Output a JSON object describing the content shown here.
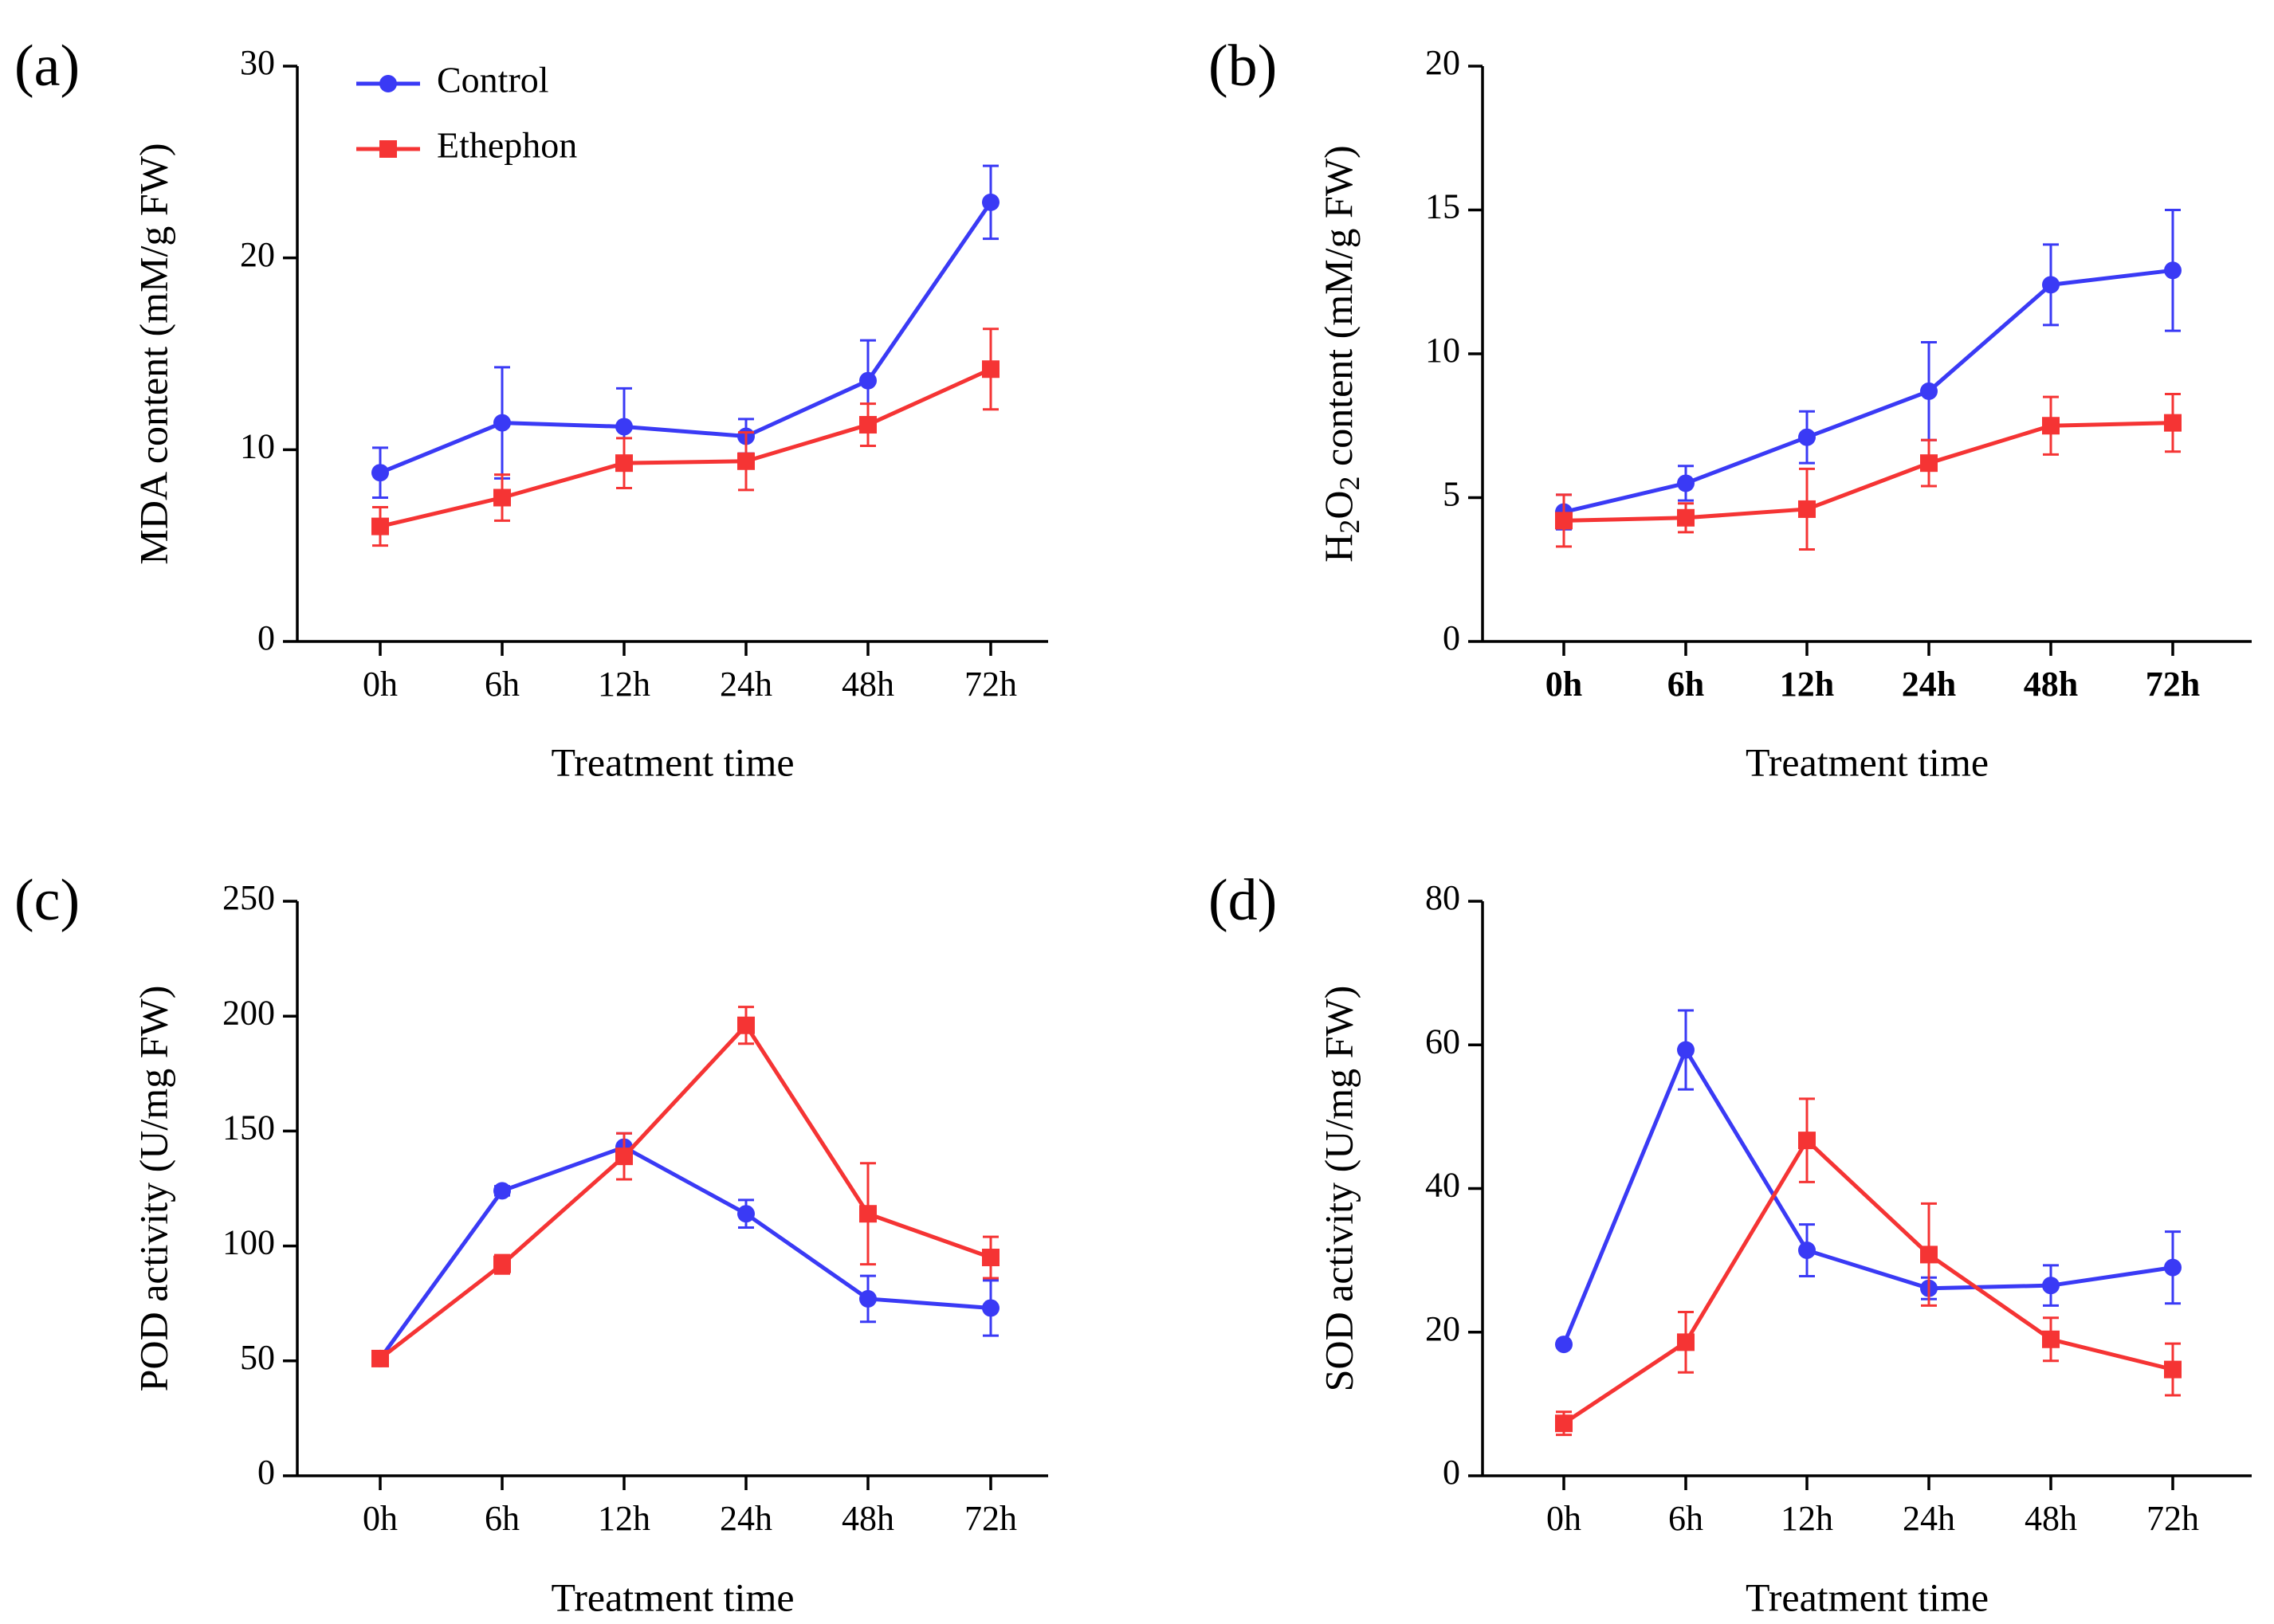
{
  "colors": {
    "control": "#3a3af5",
    "ethephon": "#f53434"
  },
  "legend": {
    "control": "Control",
    "ethephon": "Ethephon"
  },
  "chart_data": [
    {
      "panel": "(a)",
      "type": "line",
      "categories": [
        "0h",
        "6h",
        "12h",
        "24h",
        "48h",
        "72h"
      ],
      "xlabel": "Treatment time",
      "ylabel": "MDA content (mM/g FW)",
      "ylim": [
        0,
        30
      ],
      "yticks": [
        "0",
        "10",
        "20",
        "30"
      ],
      "bold_ticks": false,
      "series": [
        {
          "name": "Control",
          "marker": "circle",
          "values": [
            8.8,
            11.4,
            11.2,
            10.7,
            13.6,
            22.9
          ],
          "errors": [
            1.3,
            2.9,
            2.0,
            0.9,
            2.1,
            1.9
          ]
        },
        {
          "name": "Ethephon",
          "marker": "square",
          "values": [
            6.0,
            7.5,
            9.3,
            9.4,
            11.3,
            14.2
          ],
          "errors": [
            1.0,
            1.2,
            1.3,
            1.5,
            1.1,
            2.1
          ]
        }
      ]
    },
    {
      "panel": "(b)",
      "type": "line",
      "categories": [
        "0h",
        "6h",
        "12h",
        "24h",
        "48h",
        "72h"
      ],
      "xlabel": "Treatment time",
      "ylabel": "H2O2 content (mM/g FW)",
      "ylabel_parts": [
        "H",
        "2",
        "O",
        "2",
        " content (mM/g FW)"
      ],
      "ylim": [
        0,
        20
      ],
      "yticks": [
        "0",
        "5",
        "10",
        "15",
        "20"
      ],
      "bold_ticks": true,
      "series": [
        {
          "name": "Control",
          "marker": "circle",
          "values": [
            4.5,
            5.5,
            7.1,
            8.7,
            12.4,
            12.9
          ],
          "errors": [
            0.6,
            0.6,
            0.9,
            1.7,
            1.4,
            2.1
          ]
        },
        {
          "name": "Ethephon",
          "marker": "square",
          "values": [
            4.2,
            4.3,
            4.6,
            6.2,
            7.5,
            7.6
          ],
          "errors": [
            0.9,
            0.5,
            1.4,
            0.8,
            1.0,
            1.0
          ]
        }
      ]
    },
    {
      "panel": "(c)",
      "type": "line",
      "categories": [
        "0h",
        "6h",
        "12h",
        "24h",
        "48h",
        "72h"
      ],
      "xlabel": "Treatment time",
      "ylabel": "POD activity (U/mg FW)",
      "ylim": [
        0,
        250
      ],
      "yticks": [
        "0",
        "50",
        "100",
        "150",
        "200",
        "250"
      ],
      "bold_ticks": false,
      "series": [
        {
          "name": "Control",
          "marker": "circle",
          "values": [
            51,
            124,
            143,
            114,
            77,
            73
          ],
          "errors": [
            2,
            2,
            6,
            6,
            10,
            12
          ]
        },
        {
          "name": "Ethephon",
          "marker": "square",
          "values": [
            51,
            92,
            139,
            196,
            114,
            95
          ],
          "errors": [
            2,
            4,
            10,
            8,
            22,
            9
          ]
        }
      ]
    },
    {
      "panel": "(d)",
      "type": "line",
      "categories": [
        "0h",
        "6h",
        "12h",
        "24h",
        "48h",
        "72h"
      ],
      "xlabel": "Treatment time",
      "ylabel": "SOD activity (U/mg FW)",
      "ylim": [
        0,
        80
      ],
      "yticks": [
        "0",
        "20",
        "40",
        "60",
        "80"
      ],
      "bold_ticks": false,
      "series": [
        {
          "name": "Control",
          "marker": "circle",
          "values": [
            18.3,
            59.3,
            31.4,
            26.1,
            26.5,
            29.0
          ],
          "errors": [
            0.4,
            5.5,
            3.6,
            1.5,
            2.8,
            5.0
          ]
        },
        {
          "name": "Ethephon",
          "marker": "square",
          "values": [
            7.3,
            18.6,
            46.7,
            30.8,
            19.0,
            14.8
          ],
          "errors": [
            1.6,
            4.2,
            5.8,
            7.1,
            3.0,
            3.6
          ]
        }
      ]
    }
  ]
}
